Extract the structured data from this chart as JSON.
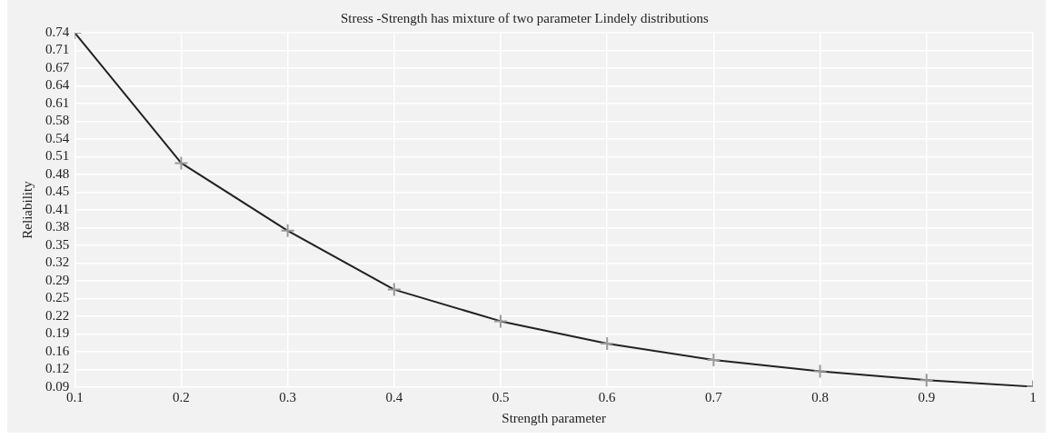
{
  "chart_data": {
    "type": "line",
    "title": "Stress -Strength has mixture of two parameter Lindely distributions",
    "xlabel": "Strength parameter",
    "ylabel": "Reliability",
    "x": [
      0.1,
      0.2,
      0.3,
      0.4,
      0.5,
      0.6,
      0.7,
      0.8,
      0.9,
      1
    ],
    "series": [
      {
        "color": "#222222",
        "values": [
          0.74,
          0.501,
          0.377,
          0.269,
          0.211,
          0.17,
          0.14,
          0.119,
          0.103,
          0.091
        ]
      }
    ],
    "xlim": [
      0.1,
      1
    ],
    "xticks": [
      0.1,
      0.2,
      0.3,
      0.4,
      0.5,
      0.6,
      0.7,
      0.8,
      0.9,
      1
    ],
    "ylim": [
      0.09,
      0.74
    ],
    "yticks": [
      {
        "value": 0.09,
        "label": "0.09"
      },
      {
        "value": 0.1225,
        "label": "0.12"
      },
      {
        "value": 0.155,
        "label": "0.16"
      },
      {
        "value": 0.1875,
        "label": "0.19"
      },
      {
        "value": 0.22,
        "label": "0.22"
      },
      {
        "value": 0.2525,
        "label": "0.25"
      },
      {
        "value": 0.285,
        "label": "0.29"
      },
      {
        "value": 0.3175,
        "label": "0.32"
      },
      {
        "value": 0.35,
        "label": "0.35"
      },
      {
        "value": 0.3825,
        "label": "0.38"
      },
      {
        "value": 0.415,
        "label": "0.41"
      },
      {
        "value": 0.4475,
        "label": "0.45"
      },
      {
        "value": 0.48,
        "label": "0.48"
      },
      {
        "value": 0.5125,
        "label": "0.51"
      },
      {
        "value": 0.545,
        "label": "0.54"
      },
      {
        "value": 0.5775,
        "label": "0.58"
      },
      {
        "value": 0.61,
        "label": "0.61"
      },
      {
        "value": 0.6425,
        "label": "0.64"
      },
      {
        "value": 0.675,
        "label": "0.67"
      },
      {
        "value": 0.7075,
        "label": "0.71"
      },
      {
        "value": 0.74,
        "label": "0.74"
      }
    ],
    "grid": true,
    "legend": false,
    "marker": "cross",
    "line_style": "solid"
  }
}
